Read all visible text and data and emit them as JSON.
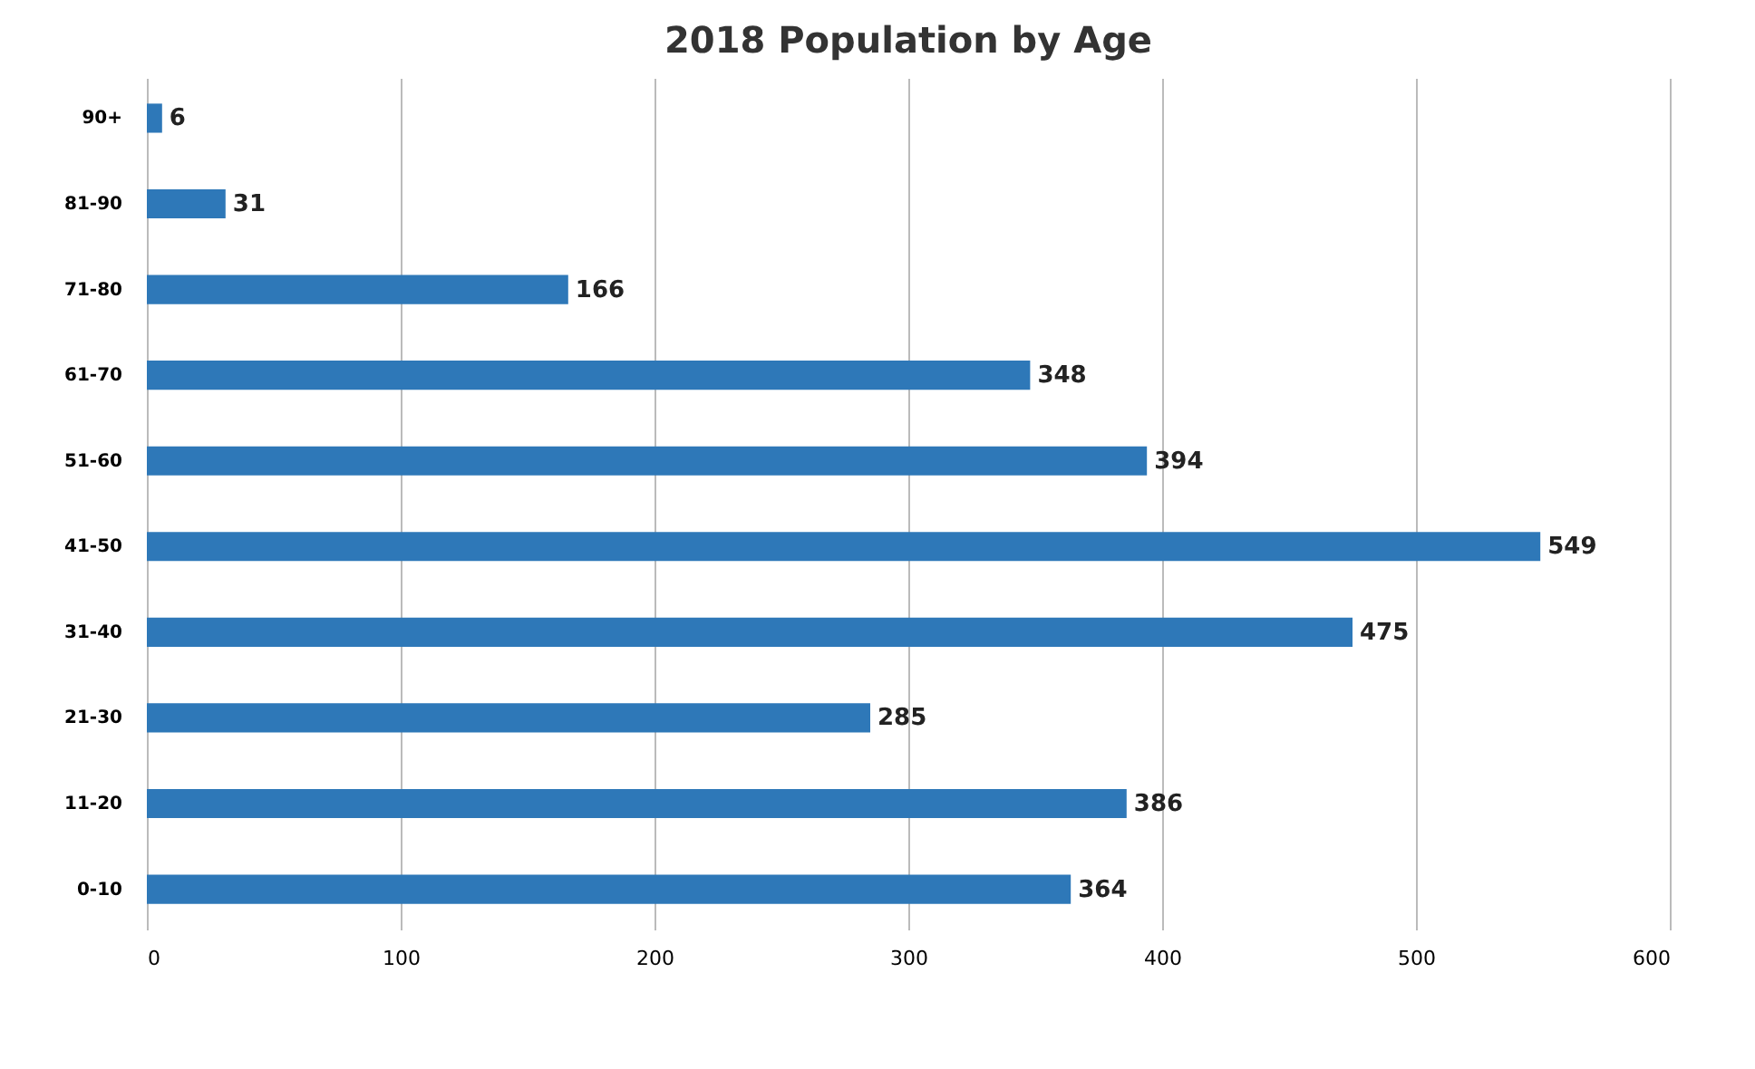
{
  "chart_data": {
    "type": "bar",
    "orientation": "horizontal",
    "title": "2018 Population by Age",
    "categories": [
      "90+",
      "81-90",
      "71-80",
      "61-70",
      "51-60",
      "41-50",
      "31-40",
      "21-30",
      "11-20",
      "0-10"
    ],
    "values": [
      6,
      31,
      166,
      348,
      394,
      549,
      475,
      285,
      386,
      364
    ],
    "color": "#2e78b8",
    "xlim": [
      0,
      600
    ],
    "xticks": [
      0,
      100,
      200,
      300,
      400,
      500,
      600
    ],
    "grid": "x",
    "data_labels": true
  }
}
